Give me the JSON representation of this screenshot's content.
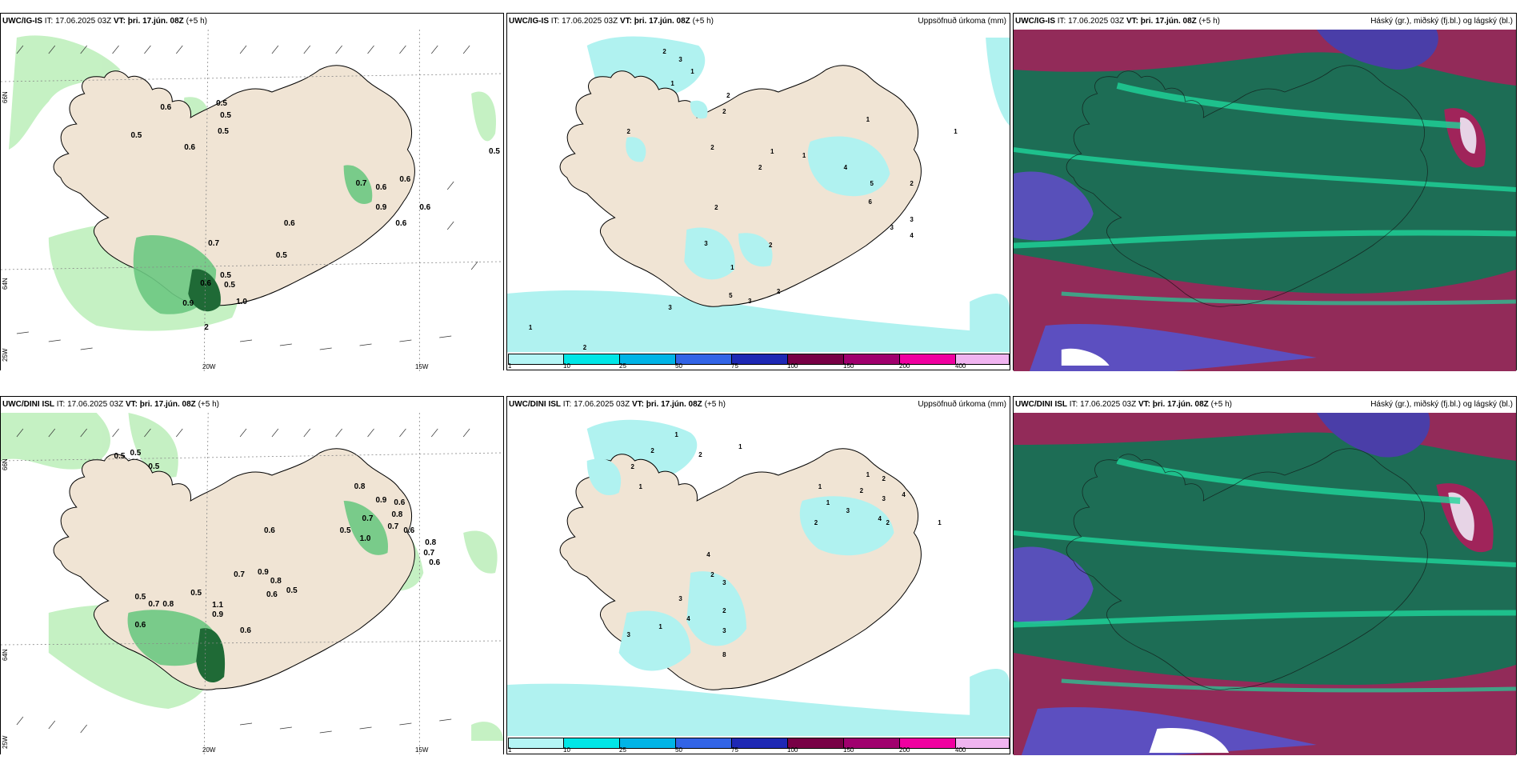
{
  "panels": {
    "top_wind": {
      "model": "UWC/IG-IS",
      "it_label": "IT:",
      "it": "17.06.2025 03Z",
      "vt_label": "VT:",
      "vt": "þri. 17.jún. 08Z",
      "lead": "(+5 h)"
    },
    "top_precip": {
      "model": "UWC/IG-IS",
      "it_label": "IT:",
      "it": "17.06.2025 03Z",
      "vt_label": "VT:",
      "vt": "þri. 17.jún. 08Z",
      "lead": "(+5 h)",
      "right_title": "Uppsöfnuð úrkoma (mm)"
    },
    "top_cloud": {
      "model": "UWC/IG-IS",
      "it_label": "IT:",
      "it": "17.06.2025 03Z",
      "vt_label": "VT:",
      "vt": "þri. 17.jún. 08Z",
      "lead": "(+5 h)",
      "right_title": "Háský (gr.), miðský (fj.bl.) og lágský (bl.)"
    },
    "bottom_wind": {
      "model": "UWC/DINI ISL",
      "it_label": "IT:",
      "it": "17.06.2025 03Z",
      "vt_label": "VT:",
      "vt": "þri. 17.jún. 08Z",
      "lead": "(+5 h)"
    },
    "bottom_precip": {
      "model": "UWC/DINI ISL",
      "it_label": "IT:",
      "it": "17.06.2025 03Z",
      "vt_label": "VT:",
      "vt": "þri. 17.jún. 08Z",
      "lead": "(+5 h)",
      "right_title": "Uppsöfnuð úrkoma (mm)"
    },
    "bottom_cloud": {
      "model": "UWC/DINI ISL",
      "it_label": "IT:",
      "it": "17.06.2025 03Z",
      "vt_label": "VT:",
      "vt": "þri. 17.jún. 08Z",
      "lead": "(+5 h)",
      "right_title": "Háský (gr.), miðský (fj.bl.) og lágský (bl.)"
    }
  },
  "axes": {
    "lon_20": "20W",
    "lon_15": "15W",
    "lat_66": "66N",
    "lat_64": "64N",
    "lat_25w": "25W"
  },
  "colorbar": {
    "labels": [
      "1",
      "10",
      "25",
      "50",
      "75",
      "100",
      "150",
      "200",
      "400"
    ],
    "colors": [
      "#b4f5f5",
      "#00e6e6",
      "#00b4e6",
      "#3264e6",
      "#1e28b4",
      "#780046",
      "#a0006e",
      "#f000a0",
      "#f0b4f0"
    ]
  },
  "values": {
    "top_wind": [
      "0.6",
      "0.5",
      "0.5",
      "0.5",
      "0.6",
      "0.5",
      "0.7",
      "0.6",
      "0.9",
      "0.6",
      "0.6",
      "0.6",
      "0.5",
      "0.7",
      "0.5",
      "0.6",
      "0.5",
      "0.9",
      "1.0",
      "0.5",
      "0.6",
      "2"
    ],
    "top_precip": [
      "2",
      "3",
      "1",
      "1",
      "2",
      "2",
      "2",
      "2",
      "1",
      "2",
      "1",
      "4",
      "5",
      "6",
      "2",
      "3",
      "3",
      "4",
      "2",
      "3",
      "2",
      "1",
      "3",
      "5",
      "3",
      "2",
      "1",
      "1",
      "2",
      "1"
    ],
    "bottom_wind": [
      "0.5",
      "0.5",
      "0.5",
      "0.8",
      "0.9",
      "0.6",
      "0.7",
      "0.8",
      "0.7",
      "0.6",
      "0.6",
      "1.0",
      "0.5",
      "0.8",
      "0.7",
      "0.6",
      "0.7",
      "0.9",
      "0.8",
      "0.6",
      "0.5",
      "0.5",
      "0.5",
      "0.7",
      "0.8",
      "1.1",
      "0.9",
      "0.6",
      "0.6"
    ],
    "bottom_precip": [
      "1",
      "2",
      "2",
      "1",
      "2",
      "1",
      "1",
      "1",
      "2",
      "1",
      "2",
      "3",
      "4",
      "3",
      "4",
      "2",
      "2",
      "4",
      "2",
      "3",
      "3",
      "4",
      "2",
      "3",
      "1",
      "3",
      "8",
      "1"
    ]
  },
  "colors": {
    "land": "#f0e4d4",
    "precip_light": "#b0f2f0",
    "rain_green_light": "#c2f0c0",
    "rain_green_mid": "#6cc882",
    "rain_green_dark": "#1f6a36",
    "cloud_high": "#a0245a",
    "cloud_mid": "#4a3ea8",
    "cloud_low": "#1d6d55"
  }
}
